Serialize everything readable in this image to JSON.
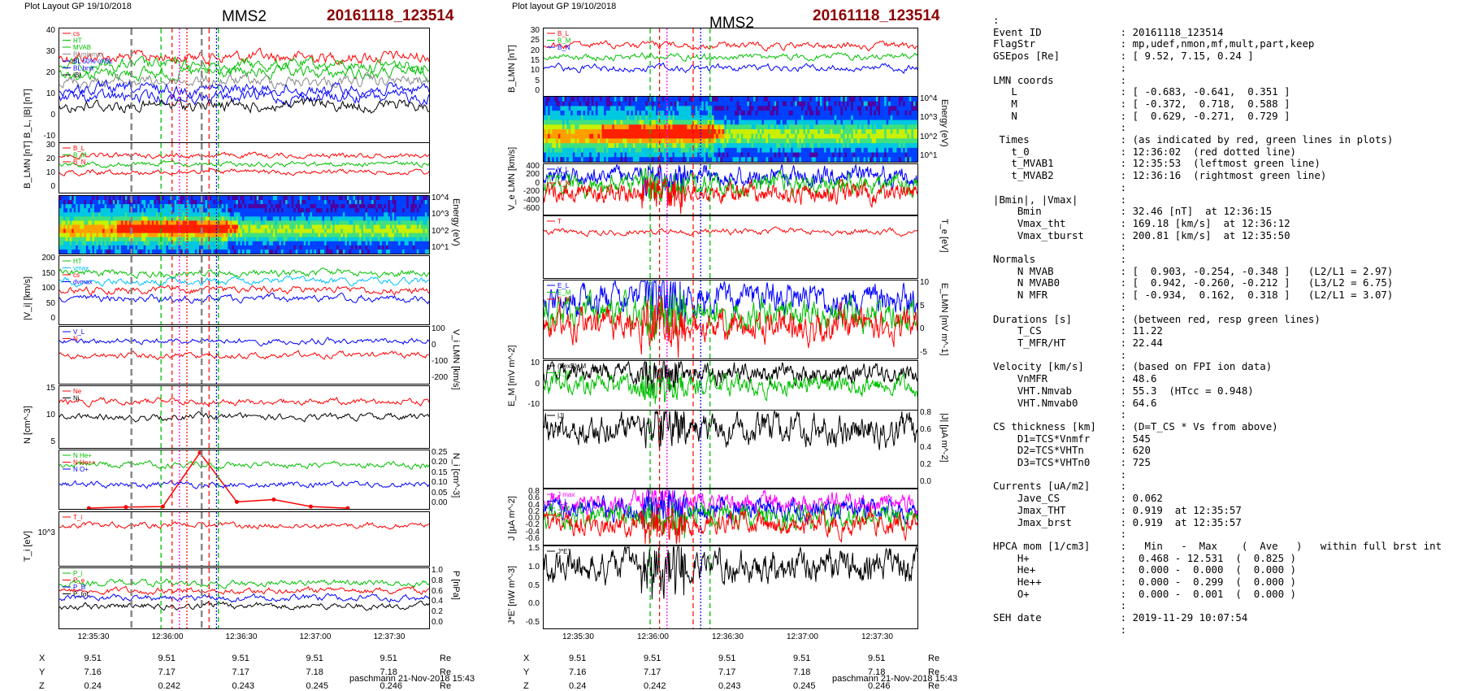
{
  "left_figure": {
    "header_small": "Plot Layout GP 19/10/2018",
    "spacecraft": "MMS2",
    "event": "20161118_123514",
    "footer": "paschmann 21-Nov-2018 15:43",
    "time_ticks": [
      "12:35:30",
      "12:36:00",
      "12:36:30",
      "12:37:00",
      "12:37:30"
    ],
    "ephemeris": {
      "labels": [
        "X",
        "Y",
        "Z"
      ],
      "unit": "Re",
      "rows": [
        [
          "9.51",
          "9.51",
          "9.51",
          "9.51",
          "9.51"
        ],
        [
          "7.16",
          "7.17",
          "7.17",
          "7.18",
          "7.18"
        ],
        [
          "0.24",
          "0.242",
          "0.243",
          "0.245",
          "0.246"
        ]
      ]
    }
  },
  "right_figure": {
    "header_small": "Plot layout GP 19/10/2018",
    "spacecraft": "MMS2",
    "event": "20161118_123514",
    "footer": "paschmann 21-Nov-2018 15:43",
    "time_ticks": [
      "12:35:30",
      "12:36:00",
      "12:36:30",
      "12:37:00",
      "12:37:30"
    ],
    "ephemeris": {
      "labels": [
        "X",
        "Y",
        "Z"
      ],
      "unit": "Re",
      "rows": [
        [
          "9.51",
          "9.51",
          "9.51",
          "9.51",
          "9.51"
        ],
        [
          "7.16",
          "7.17",
          "7.17",
          "7.18",
          "7.18"
        ],
        [
          "0.24",
          "0.242",
          "0.243",
          "0.245",
          "0.246"
        ]
      ]
    }
  },
  "colors": {
    "event_title": "#8b0000",
    "red": "#ff0000",
    "green": "#00c000",
    "blue": "#0000ff",
    "black": "#000000",
    "magenta": "#ff00ff"
  },
  "chart_data": [
    {
      "type": "line",
      "figure": "left",
      "ylabel": "B_L, |B| [nT]",
      "ylim": [
        -10,
        45
      ],
      "yticks": [
        "40",
        "30",
        "20",
        "10",
        "0",
        "-10"
      ],
      "series": [
        {
          "name": "cs",
          "color": "#ff0000"
        },
        {
          "name": "HT",
          "color": "#00c000"
        },
        {
          "name": "MVAB",
          "color": "#00c000"
        },
        {
          "name": "BLminmax",
          "color": "#888888"
        },
        {
          "name": "BL 50% of BL",
          "color": "#0000ff"
        },
        {
          "name": "BL brst",
          "color": "#0000ff"
        },
        {
          "name": "|B|",
          "color": "#000000"
        }
      ]
    },
    {
      "type": "line",
      "figure": "left",
      "ylabel": "B_LMN [nT]",
      "ylim": [
        -5,
        35
      ],
      "yticks": [
        "30",
        "20",
        "10",
        "0"
      ],
      "series": [
        {
          "name": "B_L",
          "color": "#ff0000"
        },
        {
          "name": "B_M",
          "color": "#00c000"
        },
        {
          "name": "B_N",
          "color": "#ff0000"
        }
      ]
    },
    {
      "type": "heatmap",
      "figure": "left",
      "ylabel": "Energy (eV)",
      "yticks": [
        "10^4",
        "10^3",
        "10^2",
        "10^1"
      ]
    },
    {
      "type": "line",
      "figure": "left",
      "ylabel": "|V_i| [km/s]",
      "ylim": [
        0,
        200
      ],
      "yticks": [
        "200",
        "150",
        "100",
        "50",
        "0"
      ],
      "series": [
        {
          "name": "HT",
          "color": "#00c000"
        },
        {
          "name": "vmax",
          "color": "#00c0ff"
        },
        {
          "name": "cs",
          "color": "#ff0000"
        },
        {
          "name": "dvmax",
          "color": "#0000ff"
        }
      ]
    },
    {
      "type": "line",
      "figure": "left",
      "ylabel": "V_i LMN [km/s]",
      "ylim": [
        -200,
        100
      ],
      "yticks": [
        "100",
        "0",
        "-100",
        "-200"
      ],
      "series": [
        {
          "name": "V_L",
          "color": "#0000ff"
        },
        {
          "name": "N",
          "color": "#ff0000"
        }
      ]
    },
    {
      "type": "line",
      "figure": "left",
      "ylabel": "N [cm^-3]",
      "ylim": [
        0,
        18
      ],
      "yticks": [
        "15",
        "10",
        "5"
      ],
      "series": [
        {
          "name": "Ne",
          "color": "#ff0000"
        },
        {
          "name": "Ni",
          "color": "#000000"
        }
      ]
    },
    {
      "type": "line",
      "figure": "left",
      "ylabel": "N_i [cm^-3]",
      "ylim": [
        0,
        0.25
      ],
      "yticks": [
        "0.25",
        "0.20",
        "0.15",
        "0.10",
        "0.05",
        "0.00"
      ],
      "series": [
        {
          "name": "N He+",
          "color": "#00c000"
        },
        {
          "name": "N He++",
          "color": "#ff0000",
          "values": [
            0.003,
            0.008,
            0.01,
            0.24,
            0.03,
            0.04,
            0.01,
            0.003
          ]
        },
        {
          "name": "N O+",
          "color": "#0000ff"
        }
      ]
    },
    {
      "type": "line",
      "figure": "left",
      "ylabel": "T_i [eV]",
      "yticks": [
        "10^3"
      ],
      "series": [
        {
          "name": "T_i",
          "color": "#ff0000"
        }
      ]
    },
    {
      "type": "line",
      "figure": "left",
      "ylabel": "P [nPa]",
      "ylim": [
        0,
        1.0
      ],
      "yticks": [
        "1.0",
        "0.8",
        "0.6",
        "0.4",
        "0.2",
        "0.0"
      ],
      "series": [
        {
          "name": "P_i",
          "color": "#00c000"
        },
        {
          "name": "P_e",
          "color": "#ff0000"
        },
        {
          "name": "P_B",
          "color": "#0000ff"
        },
        {
          "name": "P_tot",
          "color": "#000000"
        }
      ]
    },
    {
      "type": "line",
      "figure": "right",
      "ylabel": "B_LMN [nT]",
      "ylim": [
        -5,
        35
      ],
      "yticks": [
        "30",
        "25",
        "20",
        "15",
        "10",
        "5",
        "0"
      ],
      "series": [
        {
          "name": "B_L",
          "color": "#ff0000"
        },
        {
          "name": "B_M",
          "color": "#00c000"
        },
        {
          "name": "B_N",
          "color": "#0000ff"
        }
      ]
    },
    {
      "type": "heatmap",
      "figure": "right",
      "ylabel": "Energy (eV)",
      "yticks": [
        "10^4",
        "10^3",
        "10^2",
        "10^1"
      ]
    },
    {
      "type": "line",
      "figure": "right",
      "ylabel": "V_e LMN [km/s]",
      "ylim": [
        -600,
        500
      ],
      "yticks": [
        "400",
        "200",
        "0",
        "-200",
        "-400",
        "-600"
      ],
      "series": [
        {
          "name": "V_L",
          "color": "#0000ff"
        },
        {
          "name": "V_M",
          "color": "#00c000"
        },
        {
          "name": "V_N",
          "color": "#ff0000"
        }
      ]
    },
    {
      "type": "line",
      "figure": "right",
      "ylabel": "T_e [eV]",
      "series": [
        {
          "name": "T",
          "color": "#ff0000"
        }
      ]
    },
    {
      "type": "line",
      "figure": "right",
      "ylabel": "E_LMN [mV m^-1]",
      "ylim": [
        -10,
        10
      ],
      "yticks": [
        "10",
        "5",
        "0",
        "-5"
      ],
      "series": [
        {
          "name": "E_L",
          "color": "#0000ff"
        },
        {
          "name": "E_M",
          "color": "#00c000"
        },
        {
          "name": "E_N",
          "color": "#ff0000"
        }
      ]
    },
    {
      "type": "line",
      "figure": "right",
      "ylabel": "E_M [mV m^-2]",
      "ylim": [
        -15,
        15
      ],
      "yticks": [
        "10",
        "0",
        "-10"
      ],
      "series": [
        {
          "name": "(VexB)_M",
          "color": "#000000"
        },
        {
          "name": "E_M",
          "color": "#00c000"
        }
      ]
    },
    {
      "type": "line",
      "figure": "right",
      "ylabel": "|J| [µA m^-2]",
      "ylim": [
        0,
        0.9
      ],
      "yticks": [
        "0.8",
        "0.6",
        "0.4",
        "0.2",
        "0.0"
      ],
      "series": [
        {
          "name": "|J|",
          "color": "#000000"
        }
      ]
    },
    {
      "type": "line",
      "figure": "right",
      "ylabel": "J [µA m^-2]",
      "ylim": [
        -0.6,
        0.8
      ],
      "yticks": [
        "0.8",
        "0.6",
        "0.4",
        "0.2",
        "0.0",
        "-0.2",
        "-0.4",
        "-0.6"
      ],
      "series": [
        {
          "name": "J max",
          "color": "#ff00ff"
        },
        {
          "name": "J_L",
          "color": "#0000ff"
        },
        {
          "name": "J_M",
          "color": "#00c000"
        },
        {
          "name": "J_N",
          "color": "#ff0000"
        }
      ]
    },
    {
      "type": "line",
      "figure": "right",
      "ylabel": "J*E' [nW m^-3]",
      "ylim": [
        -0.5,
        1.6
      ],
      "yticks": [
        "1.5",
        "1.0",
        "0.5",
        "0.0",
        "-0.5"
      ],
      "series": [
        {
          "name": "J*E'",
          "color": "#000000"
        }
      ]
    }
  ],
  "info_text": [
    ":",
    "Event ID             : 20161118_123514",
    "FlagStr              : mp,udef,nmon,mf,mult,part,keep",
    "GSEpos [Re]          : [ 9.52, 7.15, 0.24 ]",
    "                     :",
    "LMN coords           :",
    "   L                 : [ -0.683, -0.641,  0.351 ]",
    "   M                 : [ -0.372,  0.718,  0.588 ]",
    "   N                 : [  0.629, -0.271,  0.729 ]",
    "                     :",
    " Times               : (as indicated by red, green lines in plots)",
    "   t_0               : 12:36:02  (red dotted line)",
    "   t_MVAB1           : 12:35:53  (leftmost green line)",
    "   t_MVAB2           : 12:36:16  (rightmost green line)",
    "                     :",
    "|Bmin|, |Vmax|       :",
    "    Bmin             : 32.46 [nT]  at 12:36:15",
    "    Vmax_tht         : 169.18 [km/s]  at 12:36:12",
    "    Vmax_tburst      : 200.81 [km/s]  at 12:35:50",
    "                     :",
    "Normals              :",
    "    N MVAB           : [  0.903, -0.254, -0.348 ]   (L2/L1 = 2.97)",
    "    N MVAB0          : [  0.942, -0.260, -0.212 ]   (L3/L2 = 6.75)",
    "    N MFR            : [ -0.934,  0.162,  0.318 ]   (L2/L1 = 3.07)",
    "                     :",
    "Durations [s]        : (between red, resp green lines)",
    "    T_CS             : 11.22",
    "    T_MFR/HT         : 22.44",
    "                     :",
    "Velocity [km/s]      : (based on FPI ion data)",
    "    VnMFR            : 48.6",
    "    VHT.Nmvab        : 55.3  (HTcc = 0.948)",
    "    VHT.Nmvab0       : 64.6",
    "                     :",
    "CS thickness [km]    : (D=T_CS * Vs from above)",
    "    D1=TCS*Vnmfr     : 545",
    "    D2=TCS*VHTn      : 620",
    "    D3=TCS*VHTn0     : 725",
    "                     :",
    "Currents [uA/m2]     :",
    "    Jave_CS          : 0.062",
    "    Jmax_THT         : 0.919  at 12:35:57",
    "    Jmax_brst        : 0.919  at 12:35:57",
    "                     :",
    "HPCA mom [1/cm3]     :   Min   -  Max    (  Ave   )   within full brst int",
    "    H+               :  0.468 - 12.531  (  0.825 )",
    "    He+              :  0.000 -  0.000  (  0.000 )",
    "    He++             :  0.000 -  0.299  (  0.000 )",
    "    O+               :  0.000 -  0.001  (  0.000 )",
    "                     :",
    "SEH date             : 2019-11-29 10:07:54",
    "                     :"
  ]
}
